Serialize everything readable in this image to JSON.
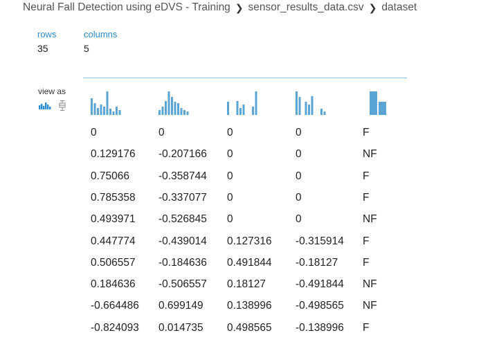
{
  "breadcrumb": {
    "experiment": "Neural Fall Detection using eDVS - Training",
    "file": "sensor_results_data.csv",
    "current": "dataset",
    "separator": "❯"
  },
  "summary": {
    "rows_label": "rows",
    "rows_value": "35",
    "columns_label": "columns",
    "columns_value": "5"
  },
  "view_as": {
    "label": "view as",
    "options": [
      "histogram-icon",
      "boxplot-icon"
    ]
  },
  "accent_color": "#2a8dd4",
  "histogram_color": "#5aa5d6",
  "columns": [
    {
      "hist": [
        0.7,
        0.5,
        0.3,
        0.45,
        0.35,
        1.0,
        0.25,
        0.15,
        0.35,
        0.2
      ]
    },
    {
      "hist": [
        0.2,
        0.35,
        0.6,
        1.0,
        0.75,
        0.55,
        0.5,
        0.3,
        0.2,
        0.15
      ]
    },
    {
      "hist": [
        0.55,
        0,
        0,
        0.6,
        0.3,
        0.45,
        0,
        0,
        0.35,
        1.0
      ]
    },
    {
      "hist": [
        1.0,
        0.75,
        0,
        0.55,
        0.45,
        0.8,
        0,
        0,
        0.25,
        0.15
      ]
    },
    {
      "hist": [
        1.0,
        0.55
      ]
    }
  ],
  "table": {
    "rows": [
      [
        "0",
        "0",
        "0",
        "0",
        "F"
      ],
      [
        "0.129176",
        "-0.207166",
        "0",
        "0",
        "NF"
      ],
      [
        "0.75066",
        "-0.358744",
        "0",
        "0",
        "F"
      ],
      [
        "0.785358",
        "-0.337077",
        "0",
        "0",
        "F"
      ],
      [
        "0.493971",
        "-0.526845",
        "0",
        "0",
        "NF"
      ],
      [
        "0.447774",
        "-0.439014",
        "0.127316",
        "-0.315914",
        "F"
      ],
      [
        "0.506557",
        "-0.184636",
        "0.491844",
        "-0.18127",
        "F"
      ],
      [
        "0.184636",
        "-0.506557",
        "0.18127",
        "-0.491844",
        "NF"
      ],
      [
        "-0.664486",
        "0.699149",
        "0.138996",
        "-0.498565",
        "NF"
      ],
      [
        "-0.824093",
        "0.014735",
        "0.498565",
        "-0.138996",
        "F"
      ]
    ]
  }
}
